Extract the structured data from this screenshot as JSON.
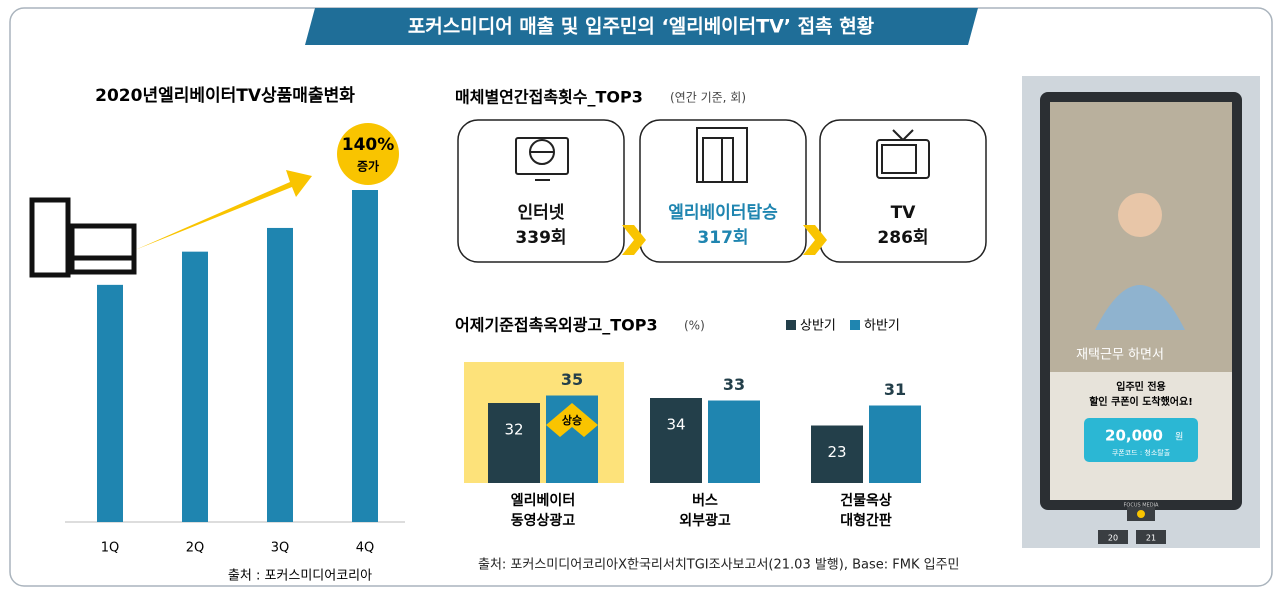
{
  "header": {
    "title": "포커스미디어 매출 및 입주민의 ‘엘리베이터TV’ 접촉 현황"
  },
  "chart_data": [
    {
      "type": "bar",
      "title": "2020년엘리베이터TV상품매출변화",
      "categories": [
        "1Q",
        "2Q",
        "3Q",
        "4Q"
      ],
      "values": [
        100,
        114,
        124,
        140
      ],
      "color": "#1f85b0",
      "annotation": "140%",
      "annotation_sub": "증가",
      "source": "출처 : 포커스미디어코리아"
    },
    {
      "type": "grouped_bar",
      "title": "어제기준접촉옥외광고_TOP3",
      "subtitle": "(%)",
      "categories": [
        [
          "엘리베이터",
          "동영상광고"
        ],
        [
          "버스",
          "외부광고"
        ],
        [
          "건물옥상",
          "대형간판"
        ]
      ],
      "series": [
        {
          "name": "상반기",
          "color": "#233f4a",
          "values": [
            32,
            34,
            23
          ]
        },
        {
          "name": "하반기",
          "color": "#1f85b0",
          "values": [
            35,
            33,
            31
          ]
        }
      ],
      "highlight_color": "#fde27a",
      "annotation": "상승"
    }
  ],
  "media_top3": {
    "title": "매체별연간접촉횟수_TOP3",
    "subtitle": "(연간 기준, 회)",
    "items": [
      {
        "label": "인터넷",
        "count": "339회"
      },
      {
        "label": "엘리베이터탑승",
        "count": "317회"
      },
      {
        "label": "TV",
        "count": "286회"
      }
    ]
  },
  "source": "출처: 포커스미디어코리아X한국리서치TGI조사보고서(21.03 발행), Base: FMK 입주민",
  "elevator_ad": {
    "caption": "재택근무 하면서",
    "line1": "입주민 전용",
    "line2": "할인 쿠폰이 도착했어요!",
    "amount": "20,000",
    "unit": "원",
    "code": "쿠폰코드 : 청소탈출",
    "brand": "FOCUS MEDIA",
    "buttons": [
      "20",
      "21"
    ]
  }
}
